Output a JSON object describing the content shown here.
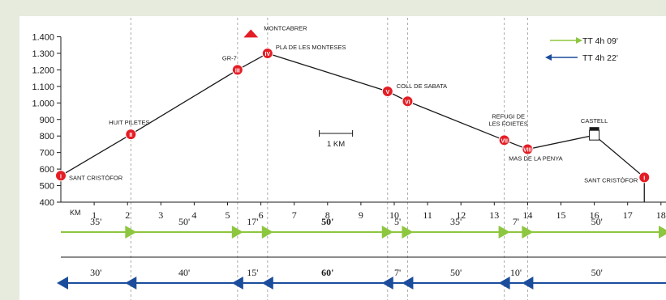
{
  "chart_data": {
    "type": "line",
    "ylim": [
      400,
      1400
    ],
    "y_ticks": [
      "1.400",
      "1.300",
      "1.200",
      "1.100",
      "1.000",
      "900",
      "800",
      "700",
      "600",
      "500",
      "400"
    ],
    "x_axis_unit": "KM",
    "x_ticks": [
      "1",
      "2",
      "3",
      "4",
      "5",
      "6",
      "7",
      "8",
      "9",
      "10",
      "11",
      "12",
      "13",
      "14",
      "15",
      "16",
      "17",
      "18"
    ],
    "xlim": [
      0,
      18
    ],
    "profile": {
      "x": [
        0,
        2.1,
        5.3,
        6.2,
        9.8,
        10.4,
        13.3,
        14,
        16,
        17.5
      ],
      "y": [
        560,
        810,
        1200,
        1300,
        1070,
        1010,
        775,
        720,
        805,
        550
      ]
    },
    "waypoints": [
      {
        "roman": "I",
        "label": "SANT CRISTÒFOR",
        "x": 0,
        "y": 560
      },
      {
        "roman": "II",
        "label": "HUIT PILETES",
        "x": 2.1,
        "y": 810
      },
      {
        "roman": "III",
        "label": "GR-7",
        "x": 5.3,
        "y": 1200
      },
      {
        "roman": "IV",
        "label": "PLA DE LES MONTESES",
        "x": 6.2,
        "y": 1300
      },
      {
        "roman": "V",
        "label": "COLL DE SABATA",
        "x": 9.8,
        "y": 1070
      },
      {
        "roman": "VI",
        "label": "",
        "x": 10.4,
        "y": 1010
      },
      {
        "roman": "VII",
        "label": "REFUGI DE LES FOIETES",
        "x": 13.3,
        "y": 775
      },
      {
        "roman": "VIII",
        "label": "MAS DE LA PENYA",
        "x": 14,
        "y": 720
      },
      {
        "roman": "I",
        "label": "SANT CRISTÒFOR",
        "x": 17.5,
        "y": 550
      }
    ],
    "peak": {
      "label": "MONTCABRER",
      "x": 5.7,
      "y": 1420
    },
    "castle": {
      "label": "CASTELL",
      "x": 16,
      "y": 805
    },
    "scale_label": "1 KM",
    "legend": [
      {
        "label": "TT  4h 09'",
        "color": "#8dc63f",
        "direction": "right"
      },
      {
        "label": "TT  4h 22'",
        "color": "#1b4d9c",
        "direction": "left"
      }
    ],
    "forward_times": {
      "breaks": [
        2.1,
        5.3,
        6.2,
        9.8,
        10.4,
        13.3,
        14
      ],
      "labels": [
        "35'",
        "50'",
        "17'",
        "50'",
        "5'",
        "35'",
        "7'",
        "50'"
      ],
      "bold": [
        false,
        false,
        false,
        true,
        false,
        false,
        false,
        false
      ]
    },
    "return_times": {
      "breaks": [
        2.1,
        5.3,
        6.2,
        9.8,
        10.4,
        13.3,
        14
      ],
      "labels": [
        "30'",
        "40'",
        "15'",
        "60'",
        "7'",
        "50'",
        "10'",
        "50'"
      ],
      "bold": [
        false,
        false,
        false,
        true,
        false,
        false,
        false,
        false
      ]
    },
    "colors": {
      "background": "#e6ebdd",
      "panel": "#ffffff",
      "line": "#1a1a1a",
      "marker": "#e41d25",
      "dashed": "#aaaaaa",
      "forward": "#8dc63f",
      "return": "#1b4d9c"
    }
  }
}
